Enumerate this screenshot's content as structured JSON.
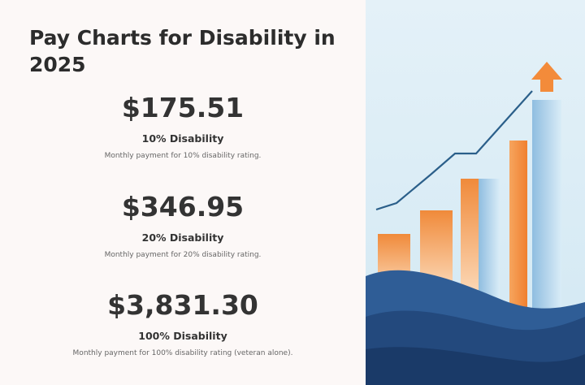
{
  "header": {
    "title": "Pay Charts for Disability in 2025"
  },
  "items": [
    {
      "amount": "$175.51",
      "label": "10% Disability",
      "description": "Monthly payment for 10% disability rating."
    },
    {
      "amount": "$346.95",
      "label": "20% Disability",
      "description": "Monthly payment for 20% disability rating."
    },
    {
      "amount": "$3,831.30",
      "label": "100% Disability",
      "description": "Monthly payment for 100% disability rating (veteran alone)."
    }
  ]
}
